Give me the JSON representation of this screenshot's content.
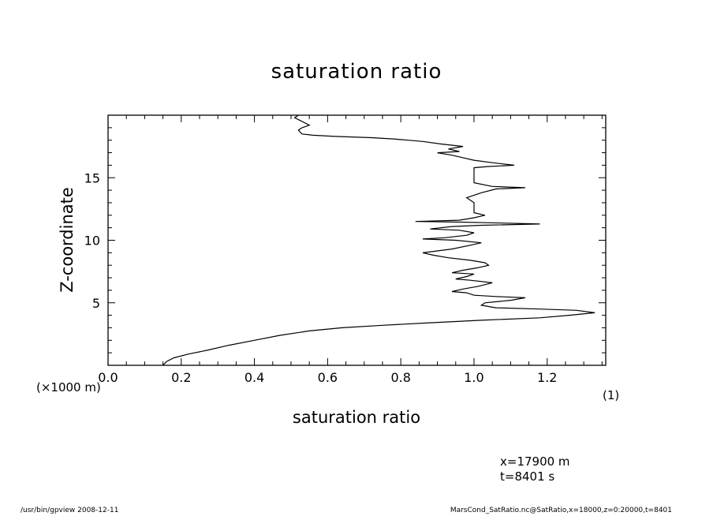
{
  "page": {
    "x_unit_note": "(×1000 m)",
    "y_unit_note": "(1)",
    "coord_x": "x=17900  m",
    "coord_t": "t=8401  s",
    "footer_left": "/usr/bin/gpview   2008-12-11",
    "footer_right": "MarsCond_SatRatio.nc@SatRatio,x=18000,z=0:20000,t=8401"
  },
  "chart_data": {
    "type": "line",
    "title": "saturation ratio",
    "xlabel": "saturation ratio",
    "ylabel": "Z-coordinate",
    "xlim": [
      0.0,
      1.36
    ],
    "ylim": [
      0,
      20
    ],
    "xticks": [
      0.0,
      0.2,
      0.4,
      0.6,
      0.8,
      1.0,
      1.2
    ],
    "xtick_labels": [
      "0.0",
      "0.2",
      "0.4",
      "0.6",
      "0.8",
      "1.0",
      "1.2"
    ],
    "yticks": [
      5,
      10,
      15
    ],
    "ytick_labels": [
      "5",
      "10",
      "15"
    ],
    "grid": false,
    "series": [
      {
        "color": "#000000",
        "points": [
          [
            0.15,
            0.0
          ],
          [
            0.16,
            0.3
          ],
          [
            0.18,
            0.6
          ],
          [
            0.22,
            0.9
          ],
          [
            0.27,
            1.2
          ],
          [
            0.33,
            1.6
          ],
          [
            0.4,
            2.0
          ],
          [
            0.47,
            2.4
          ],
          [
            0.55,
            2.75
          ],
          [
            0.64,
            3.0
          ],
          [
            0.75,
            3.2
          ],
          [
            0.88,
            3.4
          ],
          [
            1.02,
            3.6
          ],
          [
            1.18,
            3.8
          ],
          [
            1.26,
            4.0
          ],
          [
            1.33,
            4.2
          ],
          [
            1.28,
            4.4
          ],
          [
            1.18,
            4.5
          ],
          [
            1.06,
            4.6
          ],
          [
            1.02,
            4.8
          ],
          [
            1.03,
            5.0
          ],
          [
            1.1,
            5.2
          ],
          [
            1.14,
            5.4
          ],
          [
            1.06,
            5.5
          ],
          [
            1.0,
            5.6
          ],
          [
            0.98,
            5.8
          ],
          [
            0.94,
            5.9
          ],
          [
            0.97,
            6.1
          ],
          [
            1.01,
            6.3
          ],
          [
            1.05,
            6.6
          ],
          [
            0.99,
            6.8
          ],
          [
            0.95,
            6.9
          ],
          [
            0.98,
            7.1
          ],
          [
            1.0,
            7.3
          ],
          [
            0.94,
            7.4
          ],
          [
            0.97,
            7.6
          ],
          [
            1.01,
            7.8
          ],
          [
            1.04,
            8.0
          ],
          [
            1.03,
            8.2
          ],
          [
            0.99,
            8.4
          ],
          [
            0.93,
            8.6
          ],
          [
            0.89,
            8.8
          ],
          [
            0.86,
            9.0
          ],
          [
            0.94,
            9.3
          ],
          [
            0.99,
            9.6
          ],
          [
            1.02,
            9.8
          ],
          [
            0.95,
            10.0
          ],
          [
            0.86,
            10.1
          ],
          [
            0.92,
            10.2
          ],
          [
            0.98,
            10.4
          ],
          [
            1.0,
            10.6
          ],
          [
            0.96,
            10.8
          ],
          [
            0.88,
            10.9
          ],
          [
            0.94,
            11.1
          ],
          [
            1.02,
            11.2
          ],
          [
            1.18,
            11.3
          ],
          [
            1.04,
            11.4
          ],
          [
            0.96,
            11.45
          ],
          [
            0.84,
            11.5
          ],
          [
            0.96,
            11.6
          ],
          [
            1.0,
            11.8
          ],
          [
            1.03,
            12.0
          ],
          [
            1.0,
            12.2
          ],
          [
            1.0,
            13.0
          ],
          [
            0.98,
            13.4
          ],
          [
            1.02,
            13.8
          ],
          [
            1.06,
            14.1
          ],
          [
            1.14,
            14.2
          ],
          [
            1.05,
            14.3
          ],
          [
            1.0,
            14.6
          ],
          [
            1.0,
            15.8
          ],
          [
            1.04,
            15.9
          ],
          [
            1.11,
            16.0
          ],
          [
            1.05,
            16.2
          ],
          [
            1.0,
            16.4
          ],
          [
            0.97,
            16.6
          ],
          [
            0.94,
            16.8
          ],
          [
            0.9,
            17.0
          ],
          [
            0.96,
            17.1
          ],
          [
            0.93,
            17.3
          ],
          [
            0.97,
            17.5
          ],
          [
            0.91,
            17.7
          ],
          [
            0.86,
            17.9
          ],
          [
            0.82,
            18.0
          ],
          [
            0.78,
            18.1
          ],
          [
            0.72,
            18.2
          ],
          [
            0.62,
            18.3
          ],
          [
            0.56,
            18.4
          ],
          [
            0.53,
            18.5
          ],
          [
            0.52,
            18.8
          ],
          [
            0.53,
            19.0
          ],
          [
            0.55,
            19.2
          ],
          [
            0.53,
            19.5
          ],
          [
            0.51,
            19.8
          ],
          [
            0.52,
            20.0
          ]
        ]
      }
    ]
  }
}
